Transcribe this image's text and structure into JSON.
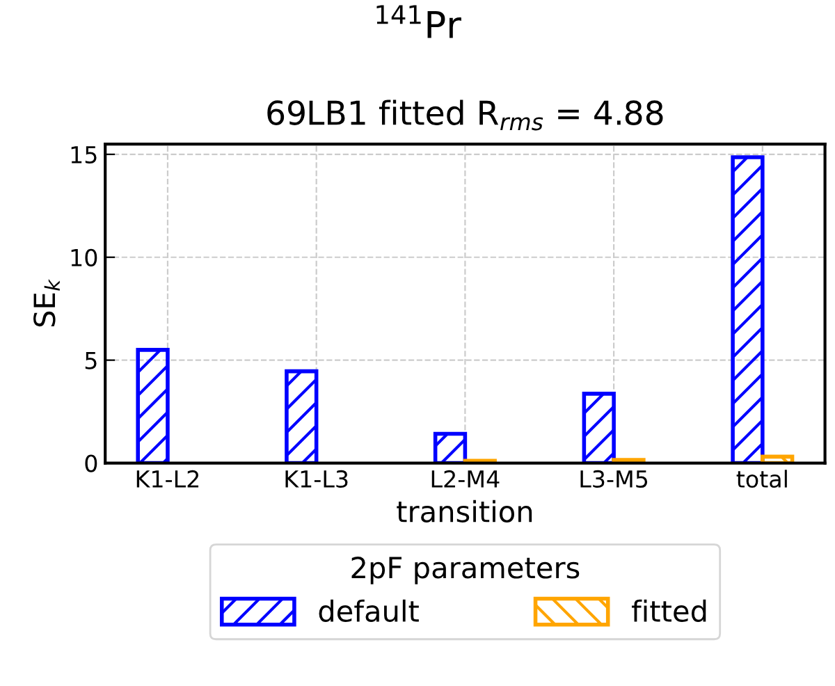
{
  "chart_data": {
    "type": "bar",
    "title": "$^{141}$Pr",
    "subtitle": "69LB1 fitted R$_{rms}$ = 4.88",
    "xlabel": "transition",
    "ylabel": "SE$_{k}$",
    "legend_title": "2pF parameters",
    "categories": [
      "K1-L2",
      "K1-L3",
      "L2-M4",
      "L3-M5",
      "total"
    ],
    "series": [
      {
        "name": "default",
        "color": "#0000ff",
        "values": [
          5.5,
          4.46,
          1.42,
          3.37,
          14.86
        ]
      },
      {
        "name": "fitted",
        "color": "#ffa500",
        "values": [
          null,
          null,
          0.11,
          0.15,
          0.31
        ]
      }
    ],
    "ylim": [
      0,
      15.5
    ],
    "yticks": [
      0,
      5,
      10,
      15
    ],
    "grid": true,
    "legend": "bottom"
  }
}
